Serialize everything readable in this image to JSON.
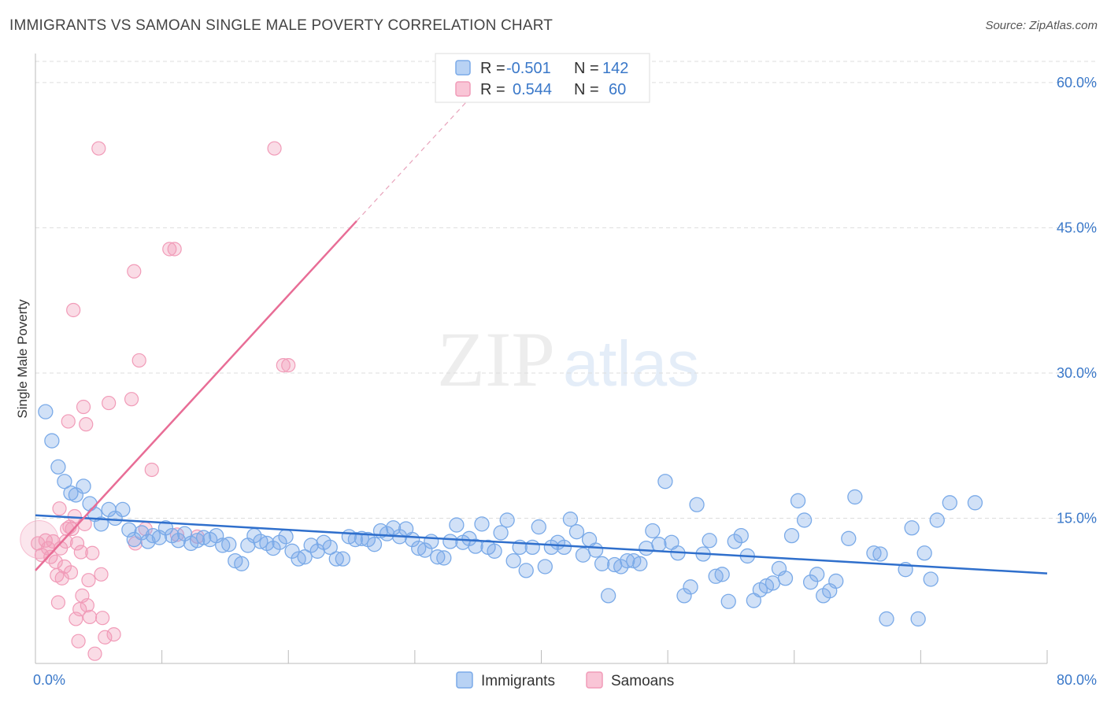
{
  "title": "IMMIGRANTS VS SAMOAN SINGLE MALE POVERTY CORRELATION CHART",
  "source": "Source: ZipAtlas.com",
  "watermark": {
    "zip": "ZIP",
    "atlas": "atlas"
  },
  "colors": {
    "immigrants": "#7aaae8",
    "samoans": "#f19bb8",
    "immigrants_line": "#2f6fcc",
    "samoans_line": "#e86d96",
    "axis_text": "#3a78c9"
  },
  "legend": {
    "rows": [
      {
        "r_label": "R =",
        "r_value": "-0.501",
        "n_label": "N =",
        "n_value": "142"
      },
      {
        "r_label": "R =",
        "r_value": "0.544",
        "n_label": "N =",
        "n_value": "60"
      }
    ]
  },
  "bottom_legend": [
    "Immigrants",
    "Samoans"
  ],
  "chart_data": {
    "type": "scatter",
    "title": "IMMIGRANTS VS SAMOAN SINGLE MALE POVERTY CORRELATION CHART",
    "xlabel": "",
    "ylabel": "Single Male Poverty",
    "xlim": [
      0,
      80
    ],
    "ylim": [
      0,
      63
    ],
    "x_tick_labels": [
      "0.0%",
      "80.0%"
    ],
    "y_ticks": [
      15,
      30,
      45,
      60
    ],
    "y_tick_labels": [
      "15.0%",
      "30.0%",
      "45.0%",
      "60.0%"
    ],
    "grid": true,
    "series": [
      {
        "name": "Immigrants",
        "r": -0.501,
        "n": 142,
        "trend": {
          "x": [
            0,
            80
          ],
          "y": [
            15.3,
            9.3
          ]
        },
        "points": [
          [
            0.8,
            26.0
          ],
          [
            1.3,
            23.0
          ],
          [
            1.8,
            20.3
          ],
          [
            2.3,
            18.8
          ],
          [
            2.8,
            17.6
          ],
          [
            3.2,
            17.4
          ],
          [
            3.8,
            18.3
          ],
          [
            4.3,
            16.5
          ],
          [
            4.7,
            15.4
          ],
          [
            5.2,
            14.4
          ],
          [
            5.8,
            15.9
          ],
          [
            6.3,
            15.0
          ],
          [
            6.9,
            15.9
          ],
          [
            7.4,
            13.8
          ],
          [
            7.8,
            12.8
          ],
          [
            8.4,
            13.5
          ],
          [
            8.9,
            12.6
          ],
          [
            9.3,
            13.2
          ],
          [
            9.8,
            13.0
          ],
          [
            10.3,
            14.0
          ],
          [
            10.8,
            13.2
          ],
          [
            11.3,
            12.7
          ],
          [
            11.8,
            13.4
          ],
          [
            12.3,
            12.4
          ],
          [
            12.8,
            12.7
          ],
          [
            13.3,
            13.0
          ],
          [
            13.8,
            12.8
          ],
          [
            14.3,
            13.2
          ],
          [
            14.8,
            12.2
          ],
          [
            15.3,
            12.3
          ],
          [
            15.8,
            10.6
          ],
          [
            16.3,
            10.3
          ],
          [
            16.8,
            12.2
          ],
          [
            17.3,
            13.2
          ],
          [
            17.8,
            12.6
          ],
          [
            18.3,
            12.4
          ],
          [
            18.8,
            11.9
          ],
          [
            19.3,
            12.5
          ],
          [
            19.8,
            13.1
          ],
          [
            20.3,
            11.6
          ],
          [
            20.8,
            10.8
          ],
          [
            21.3,
            11.0
          ],
          [
            21.8,
            12.2
          ],
          [
            22.3,
            11.6
          ],
          [
            22.8,
            12.5
          ],
          [
            23.3,
            12.0
          ],
          [
            23.8,
            10.8
          ],
          [
            24.3,
            10.8
          ],
          [
            24.8,
            13.1
          ],
          [
            25.3,
            12.8
          ],
          [
            25.8,
            12.9
          ],
          [
            26.3,
            12.8
          ],
          [
            26.8,
            12.3
          ],
          [
            27.3,
            13.7
          ],
          [
            27.8,
            13.4
          ],
          [
            28.3,
            14.0
          ],
          [
            28.8,
            13.1
          ],
          [
            29.3,
            13.9
          ],
          [
            29.8,
            12.8
          ],
          [
            30.3,
            11.9
          ],
          [
            30.8,
            11.7
          ],
          [
            31.3,
            12.6
          ],
          [
            31.8,
            11.0
          ],
          [
            32.3,
            10.9
          ],
          [
            32.8,
            12.6
          ],
          [
            33.3,
            14.3
          ],
          [
            33.8,
            12.5
          ],
          [
            34.3,
            12.9
          ],
          [
            34.8,
            12.1
          ],
          [
            35.3,
            14.4
          ],
          [
            35.8,
            12.0
          ],
          [
            36.3,
            11.6
          ],
          [
            36.8,
            13.5
          ],
          [
            37.3,
            14.8
          ],
          [
            37.8,
            10.6
          ],
          [
            38.3,
            12.0
          ],
          [
            38.8,
            9.6
          ],
          [
            39.3,
            12.0
          ],
          [
            39.8,
            14.1
          ],
          [
            40.3,
            10.0
          ],
          [
            40.8,
            12.0
          ],
          [
            41.3,
            12.5
          ],
          [
            41.8,
            12.0
          ],
          [
            42.3,
            14.9
          ],
          [
            42.8,
            13.6
          ],
          [
            43.3,
            11.2
          ],
          [
            43.8,
            12.8
          ],
          [
            44.3,
            11.7
          ],
          [
            44.8,
            10.3
          ],
          [
            45.3,
            7.0
          ],
          [
            45.8,
            10.2
          ],
          [
            46.3,
            10.0
          ],
          [
            46.8,
            10.6
          ],
          [
            47.3,
            10.6
          ],
          [
            47.8,
            10.3
          ],
          [
            48.3,
            11.9
          ],
          [
            48.8,
            13.7
          ],
          [
            49.3,
            12.3
          ],
          [
            49.8,
            18.8
          ],
          [
            50.3,
            12.5
          ],
          [
            50.8,
            11.4
          ],
          [
            51.3,
            7.0
          ],
          [
            51.8,
            7.9
          ],
          [
            52.3,
            16.4
          ],
          [
            52.8,
            11.3
          ],
          [
            53.3,
            12.7
          ],
          [
            53.8,
            9.0
          ],
          [
            54.3,
            9.2
          ],
          [
            54.8,
            6.4
          ],
          [
            55.3,
            12.6
          ],
          [
            55.8,
            13.2
          ],
          [
            56.3,
            11.1
          ],
          [
            56.8,
            6.5
          ],
          [
            57.3,
            7.6
          ],
          [
            57.8,
            8.0
          ],
          [
            58.3,
            8.3
          ],
          [
            58.8,
            9.8
          ],
          [
            59.3,
            8.8
          ],
          [
            59.8,
            13.2
          ],
          [
            60.3,
            16.8
          ],
          [
            60.8,
            14.8
          ],
          [
            61.3,
            8.4
          ],
          [
            61.8,
            9.2
          ],
          [
            62.3,
            7.0
          ],
          [
            62.8,
            7.5
          ],
          [
            63.3,
            8.5
          ],
          [
            64.3,
            12.9
          ],
          [
            64.8,
            17.2
          ],
          [
            66.3,
            11.4
          ],
          [
            66.8,
            11.3
          ],
          [
            67.3,
            4.6
          ],
          [
            68.8,
            9.7
          ],
          [
            69.3,
            14.0
          ],
          [
            69.8,
            4.6
          ],
          [
            70.3,
            11.4
          ],
          [
            70.8,
            8.7
          ],
          [
            71.3,
            14.8
          ],
          [
            72.3,
            16.6
          ],
          [
            74.3,
            16.6
          ]
        ]
      },
      {
        "name": "Samoans",
        "r": 0.544,
        "n": 60,
        "trend": {
          "x": [
            0,
            25.4
          ],
          "y": [
            9.6,
            45.7
          ]
        },
        "trend_dashed": {
          "x": [
            25.4,
            34.5
          ],
          "y": [
            45.7,
            58.6
          ]
        },
        "points": [
          [
            0.2,
            12.4
          ],
          [
            0.5,
            11.2
          ],
          [
            0.8,
            12.7
          ],
          [
            1.0,
            11.9
          ],
          [
            1.2,
            11.0
          ],
          [
            1.4,
            12.6
          ],
          [
            1.6,
            10.5
          ],
          [
            1.7,
            9.1
          ],
          [
            1.8,
            6.3
          ],
          [
            1.9,
            16.0
          ],
          [
            2.0,
            11.9
          ],
          [
            2.1,
            8.8
          ],
          [
            2.3,
            10.0
          ],
          [
            2.4,
            12.6
          ],
          [
            2.5,
            13.9
          ],
          [
            2.6,
            25.0
          ],
          [
            2.7,
            14.1
          ],
          [
            2.8,
            9.4
          ],
          [
            2.9,
            13.9
          ],
          [
            3.0,
            36.5
          ],
          [
            3.1,
            15.2
          ],
          [
            3.2,
            4.6
          ],
          [
            3.3,
            12.4
          ],
          [
            3.4,
            2.3
          ],
          [
            3.5,
            5.6
          ],
          [
            3.6,
            11.5
          ],
          [
            3.7,
            7.0
          ],
          [
            3.8,
            26.5
          ],
          [
            3.9,
            14.4
          ],
          [
            4.0,
            24.7
          ],
          [
            4.1,
            6.0
          ],
          [
            4.2,
            8.6
          ],
          [
            4.3,
            4.8
          ],
          [
            4.5,
            11.4
          ],
          [
            4.7,
            1.0
          ],
          [
            5.0,
            53.2
          ],
          [
            5.2,
            9.2
          ],
          [
            5.3,
            4.7
          ],
          [
            5.5,
            2.7
          ],
          [
            5.8,
            26.9
          ],
          [
            6.2,
            3.0
          ],
          [
            7.6,
            27.3
          ],
          [
            7.8,
            40.5
          ],
          [
            7.9,
            12.4
          ],
          [
            8.2,
            31.3
          ],
          [
            8.7,
            13.9
          ],
          [
            9.2,
            20.0
          ],
          [
            10.6,
            42.8
          ],
          [
            11.0,
            42.8
          ],
          [
            11.2,
            13.3
          ],
          [
            12.8,
            13.1
          ],
          [
            18.9,
            53.2
          ],
          [
            19.6,
            30.8
          ],
          [
            20.0,
            30.8
          ]
        ]
      }
    ]
  }
}
